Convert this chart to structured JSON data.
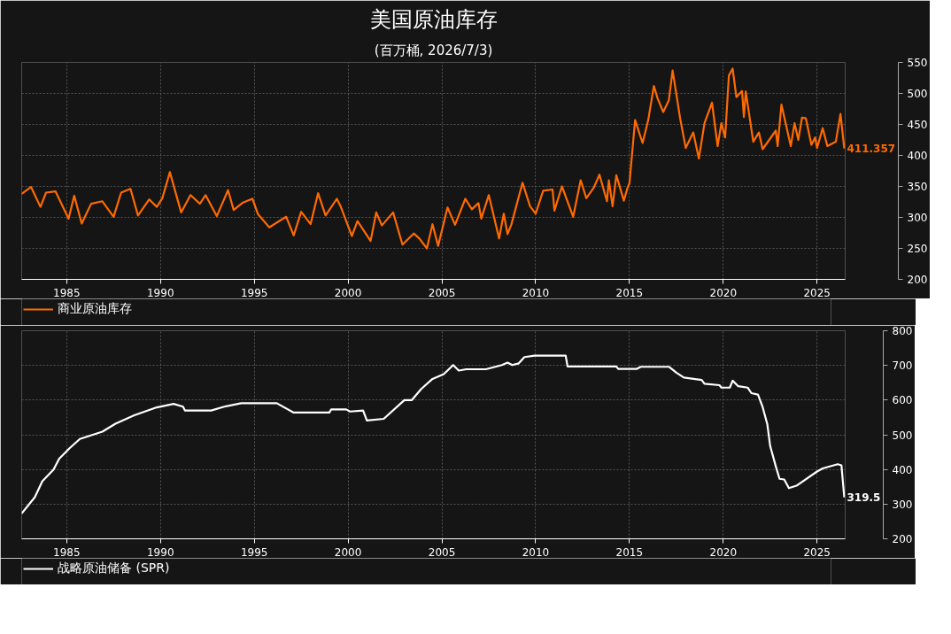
{
  "chart_data": [
    {
      "type": "line",
      "title": "美国原油库存",
      "subtitle": "(百万桶, 2026/7/3)",
      "xlim": [
        1982.6,
        2026.5
      ],
      "xticks": [
        1985,
        1990,
        1995,
        2000,
        2005,
        2010,
        2015,
        2020,
        2025
      ],
      "ylim": [
        200,
        550
      ],
      "yticks": [
        200,
        250,
        300,
        350,
        400,
        450,
        500,
        550
      ],
      "grid": true,
      "legend": "bottom left",
      "line_style": "solid",
      "series": [
        {
          "name": "商业原油库存",
          "color": "#ff6a00",
          "x": [
            1982.6,
            1983.1,
            1983.6,
            1983.9,
            1984.4,
            1985.1,
            1985.4,
            1985.8,
            1986.3,
            1986.9,
            1987.5,
            1987.9,
            1988.4,
            1988.8,
            1989.4,
            1989.8,
            1990.1,
            1990.5,
            1991.1,
            1991.6,
            1992.1,
            1992.4,
            1993.0,
            1993.6,
            1993.9,
            1994.4,
            1994.9,
            1995.2,
            1995.8,
            1996.7,
            1997.1,
            1997.5,
            1998.0,
            1998.4,
            1998.8,
            1999.4,
            1999.6,
            2000.2,
            2000.5,
            2001.2,
            2001.5,
            2001.8,
            2002.4,
            2002.9,
            2003.5,
            2003.8,
            2004.2,
            2004.5,
            2004.8,
            2005.3,
            2005.7,
            2006.25,
            2006.6,
            2006.95,
            2007.1,
            2007.5,
            2008.05,
            2008.3,
            2008.5,
            2008.7,
            2009.3,
            2009.7,
            2010.0,
            2010.4,
            2010.9,
            2011.0,
            2011.4,
            2012.0,
            2012.4,
            2012.7,
            2013.1,
            2013.4,
            2013.8,
            2013.9,
            2014.1,
            2014.3,
            2014.7,
            2014.9,
            2015.0,
            2015.3,
            2015.7,
            2016.0,
            2016.3,
            2016.5,
            2016.8,
            2017.1,
            2017.3,
            2017.7,
            2018.0,
            2018.4,
            2018.7,
            2019.0,
            2019.4,
            2019.7,
            2019.9,
            2020.1,
            2020.3,
            2020.5,
            2020.7,
            2021.0,
            2021.1,
            2021.2,
            2021.6,
            2021.9,
            2022.1,
            2022.8,
            2022.9,
            2023.1,
            2023.6,
            2023.8,
            2024.0,
            2024.2,
            2024.4,
            2024.7,
            2024.9,
            2025.0,
            2025.3,
            2025.55,
            2026.0,
            2026.25,
            2026.45
          ],
          "values": [
            338,
            349,
            317,
            340,
            342,
            298,
            335,
            290,
            322,
            326,
            301,
            340,
            346,
            303,
            329,
            317,
            331,
            373,
            308,
            336,
            322,
            336,
            302,
            344,
            312,
            324,
            330,
            305,
            284,
            301,
            271,
            309,
            289,
            339,
            303,
            330,
            318,
            270,
            294,
            262,
            308,
            287,
            308,
            256,
            274,
            266,
            250,
            289,
            254,
            316,
            288,
            330,
            313,
            323,
            298,
            336,
            266,
            306,
            273,
            288,
            356,
            318,
            306,
            343,
            345,
            311,
            350,
            301,
            360,
            331,
            348,
            369,
            326,
            360,
            318,
            368,
            327,
            348,
            355,
            457,
            420,
            457,
            512,
            492,
            470,
            489,
            537,
            460,
            412,
            437,
            395,
            452,
            485,
            415,
            452,
            429,
            529,
            540,
            494,
            504,
            462,
            503,
            422,
            437,
            410,
            440,
            415,
            482,
            415,
            452,
            425,
            461,
            460,
            417,
            429,
            412,
            444,
            415,
            422,
            467,
            411.357
          ]
        }
      ],
      "annotations": [
        {
          "text": "411.357",
          "x": 2026.45,
          "y": 411.357
        }
      ]
    },
    {
      "type": "line",
      "xlim": [
        1982.6,
        2026.5
      ],
      "xticks": [
        1985,
        1990,
        1995,
        2000,
        2005,
        2010,
        2015,
        2020,
        2025
      ],
      "ylim": [
        200,
        800
      ],
      "yticks": [
        200,
        300,
        400,
        500,
        600,
        700,
        800
      ],
      "grid": true,
      "legend": "bottom left",
      "line_style": "solid",
      "series": [
        {
          "name": "战略原油储备 (SPR)",
          "color": "#ffffff",
          "x": [
            1982.6,
            1983.3,
            1983.7,
            1984.3,
            1984.6,
            1985.15,
            1985.7,
            1986.9,
            1987.6,
            1988.6,
            1989.8,
            1990.7,
            1991.2,
            1991.3,
            1992.7,
            1993.4,
            1994.3,
            1996.2,
            1997.1,
            1999.0,
            1999.1,
            1999.9,
            2000.1,
            2000.8,
            2001.0,
            2001.9,
            2003.0,
            2003.4,
            2003.9,
            2004.5,
            2005.1,
            2005.6,
            2005.9,
            2006.3,
            2007.35,
            2008.2,
            2008.5,
            2008.75,
            2009.1,
            2009.4,
            2009.95,
            2011.6,
            2011.7,
            2014.3,
            2014.4,
            2015.4,
            2015.6,
            2017.1,
            2017.5,
            2017.9,
            2018.85,
            2019.0,
            2019.8,
            2019.9,
            2020.35,
            2020.5,
            2020.8,
            2021.3,
            2021.5,
            2021.85,
            2022.1,
            2022.35,
            2022.5,
            2022.8,
            2023.0,
            2023.25,
            2023.5,
            2023.9,
            2025.0,
            2025.3,
            2026.1,
            2026.3,
            2026.45
          ],
          "values": [
            273,
            320,
            366,
            400,
            431,
            461,
            488,
            509,
            532,
            556,
            579,
            589,
            581,
            570,
            570,
            581,
            591,
            591,
            564,
            564,
            573,
            573,
            567,
            570,
            541,
            546,
            600,
            600,
            632,
            661,
            675,
            701,
            685,
            689,
            689,
            701,
            708,
            701,
            706,
            724,
            728,
            728,
            697,
            697,
            690,
            690,
            696,
            696,
            679,
            665,
            658,
            647,
            643,
            636,
            636,
            656,
            640,
            636,
            620,
            616,
            580,
            530,
            468,
            409,
            373,
            371,
            346,
            353,
            394,
            403,
            415,
            412,
            319.5
          ]
        }
      ],
      "annotations": [
        {
          "text": "319.5",
          "x": 2026.45,
          "y": 319.5
        }
      ]
    }
  ]
}
